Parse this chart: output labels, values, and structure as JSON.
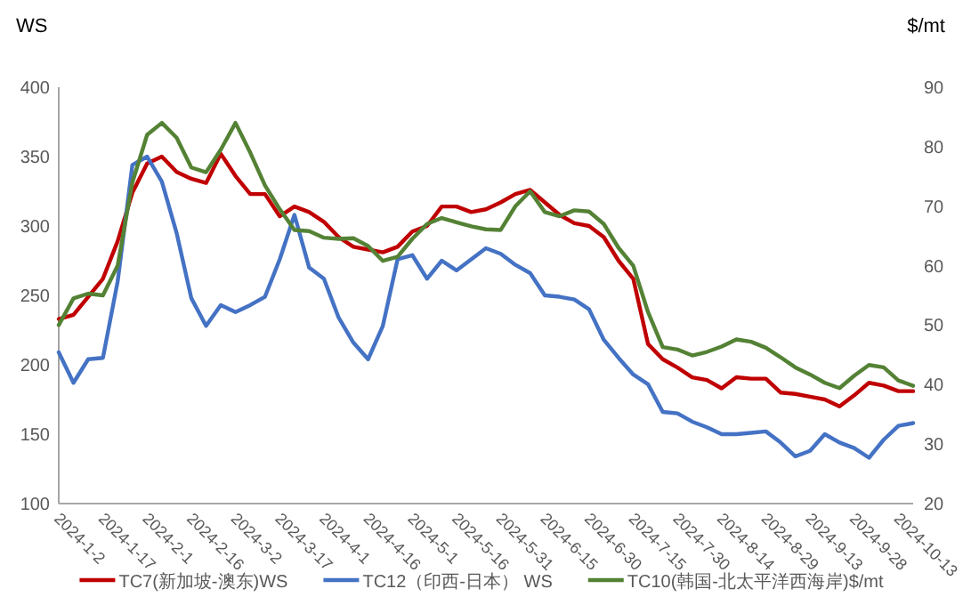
{
  "chart_data": {
    "type": "line",
    "ylabel": "WS",
    "y2label": "$/mt",
    "legend": "bottom",
    "grid": false,
    "x": [
      "2024-01-02",
      "2024-01-07",
      "2024-01-12",
      "2024-01-17",
      "2024-01-22",
      "2024-01-27",
      "2024-02-01",
      "2024-02-06",
      "2024-02-11",
      "2024-02-16",
      "2024-02-21",
      "2024-02-26",
      "2024-03-02",
      "2024-03-07",
      "2024-03-12",
      "2024-03-17",
      "2024-03-22",
      "2024-03-27",
      "2024-04-01",
      "2024-04-06",
      "2024-04-11",
      "2024-04-16",
      "2024-04-21",
      "2024-04-26",
      "2024-05-01",
      "2024-05-06",
      "2024-05-11",
      "2024-05-16",
      "2024-05-21",
      "2024-05-26",
      "2024-05-31",
      "2024-06-05",
      "2024-06-10",
      "2024-06-15",
      "2024-06-20",
      "2024-06-25",
      "2024-06-30",
      "2024-07-05",
      "2024-07-10",
      "2024-07-15",
      "2024-07-20",
      "2024-07-25",
      "2024-07-30",
      "2024-08-04",
      "2024-08-09",
      "2024-08-14",
      "2024-08-19",
      "2024-08-24",
      "2024-08-29",
      "2024-09-03",
      "2024-09-08",
      "2024-09-13",
      "2024-09-18",
      "2024-09-23",
      "2024-09-28",
      "2024-10-03",
      "2024-10-08",
      "2024-10-13",
      "2024-10-18"
    ],
    "series": [
      {
        "name": "TC7(新加坡-澳东)WS",
        "color": "#c00000",
        "values": [
          233,
          236,
          249,
          262,
          289,
          324,
          345,
          350,
          339,
          334,
          331,
          352,
          336,
          323,
          323,
          307,
          314,
          310,
          303,
          292,
          285,
          283,
          281,
          285,
          296,
          300,
          314,
          314,
          310,
          312,
          317,
          323,
          326,
          317,
          308,
          302,
          300,
          292,
          275,
          262,
          215,
          204,
          198,
          191,
          189,
          183,
          191,
          190,
          190,
          180,
          179,
          177,
          175,
          170,
          178,
          187,
          185,
          181,
          181
        ]
      },
      {
        "name": "TC12（印西-日本） WS",
        "color": "#4472c4",
        "values": [
          209,
          187,
          204,
          205,
          260,
          344,
          350,
          332,
          295,
          248,
          228,
          243,
          238,
          243,
          249,
          276,
          308,
          270,
          262,
          234,
          216,
          204,
          228,
          276,
          279,
          262,
          275,
          268,
          276,
          284,
          280,
          272,
          266,
          250,
          249,
          247,
          240,
          218,
          205,
          193,
          186,
          166,
          165,
          159,
          155,
          150,
          150,
          151,
          152,
          144,
          134,
          138,
          150,
          144,
          140,
          133,
          146,
          156,
          158
        ]
      },
      {
        "name": "TC10(韩国-北太平洋西海岸)$/mt",
        "color": "#548235",
        "axis": "y2",
        "values": [
          50,
          54.5,
          55.3,
          55,
          60,
          74,
          82,
          84,
          81.5,
          76.5,
          75.7,
          79.5,
          84,
          79,
          73.5,
          69.5,
          66,
          65.8,
          64.7,
          64.5,
          64.6,
          63.3,
          60.8,
          61.5,
          64.5,
          67,
          68,
          67.3,
          66.6,
          66.1,
          66,
          70,
          72.5,
          69,
          68.3,
          69.3,
          69.1,
          67,
          63,
          60,
          52.2,
          46.3,
          45.9,
          44.9,
          45.5,
          46.4,
          47.6,
          47.2,
          46.2,
          44.6,
          42.9,
          41.7,
          40.3,
          39.4,
          41.5,
          43.3,
          42.9,
          40.7,
          39.8
        ]
      }
    ],
    "xlim": [
      "2024-01-02",
      "2024-10-18"
    ],
    "xticks": [
      {
        "value": "2024-01-02",
        "label": "2024-1-2"
      },
      {
        "value": "2024-01-17",
        "label": "2024-1-17"
      },
      {
        "value": "2024-02-01",
        "label": "2024-2-1"
      },
      {
        "value": "2024-02-16",
        "label": "2024-2-16"
      },
      {
        "value": "2024-03-02",
        "label": "2024-3-2"
      },
      {
        "value": "2024-03-17",
        "label": "2024-3-17"
      },
      {
        "value": "2024-04-01",
        "label": "2024-4-1"
      },
      {
        "value": "2024-04-16",
        "label": "2024-4-16"
      },
      {
        "value": "2024-05-01",
        "label": "2024-5-1"
      },
      {
        "value": "2024-05-16",
        "label": "2024-5-16"
      },
      {
        "value": "2024-05-31",
        "label": "2024-5-31"
      },
      {
        "value": "2024-06-15",
        "label": "2024-6-15"
      },
      {
        "value": "2024-06-30",
        "label": "2024-6-30"
      },
      {
        "value": "2024-07-15",
        "label": "2024-7-15"
      },
      {
        "value": "2024-07-30",
        "label": "2024-7-30"
      },
      {
        "value": "2024-08-14",
        "label": "2024-8-14"
      },
      {
        "value": "2024-08-29",
        "label": "2024-8-29"
      },
      {
        "value": "2024-09-13",
        "label": "2024-9-13"
      },
      {
        "value": "2024-09-28",
        "label": "2024-9-28"
      },
      {
        "value": "2024-10-13",
        "label": "2024-10-13"
      }
    ],
    "ylim": [
      100,
      400
    ],
    "yticks": [
      100,
      150,
      200,
      250,
      300,
      350,
      400
    ],
    "y2lim": [
      20,
      90
    ],
    "y2ticks": [
      20,
      30,
      40,
      50,
      60,
      70,
      80,
      90
    ]
  }
}
